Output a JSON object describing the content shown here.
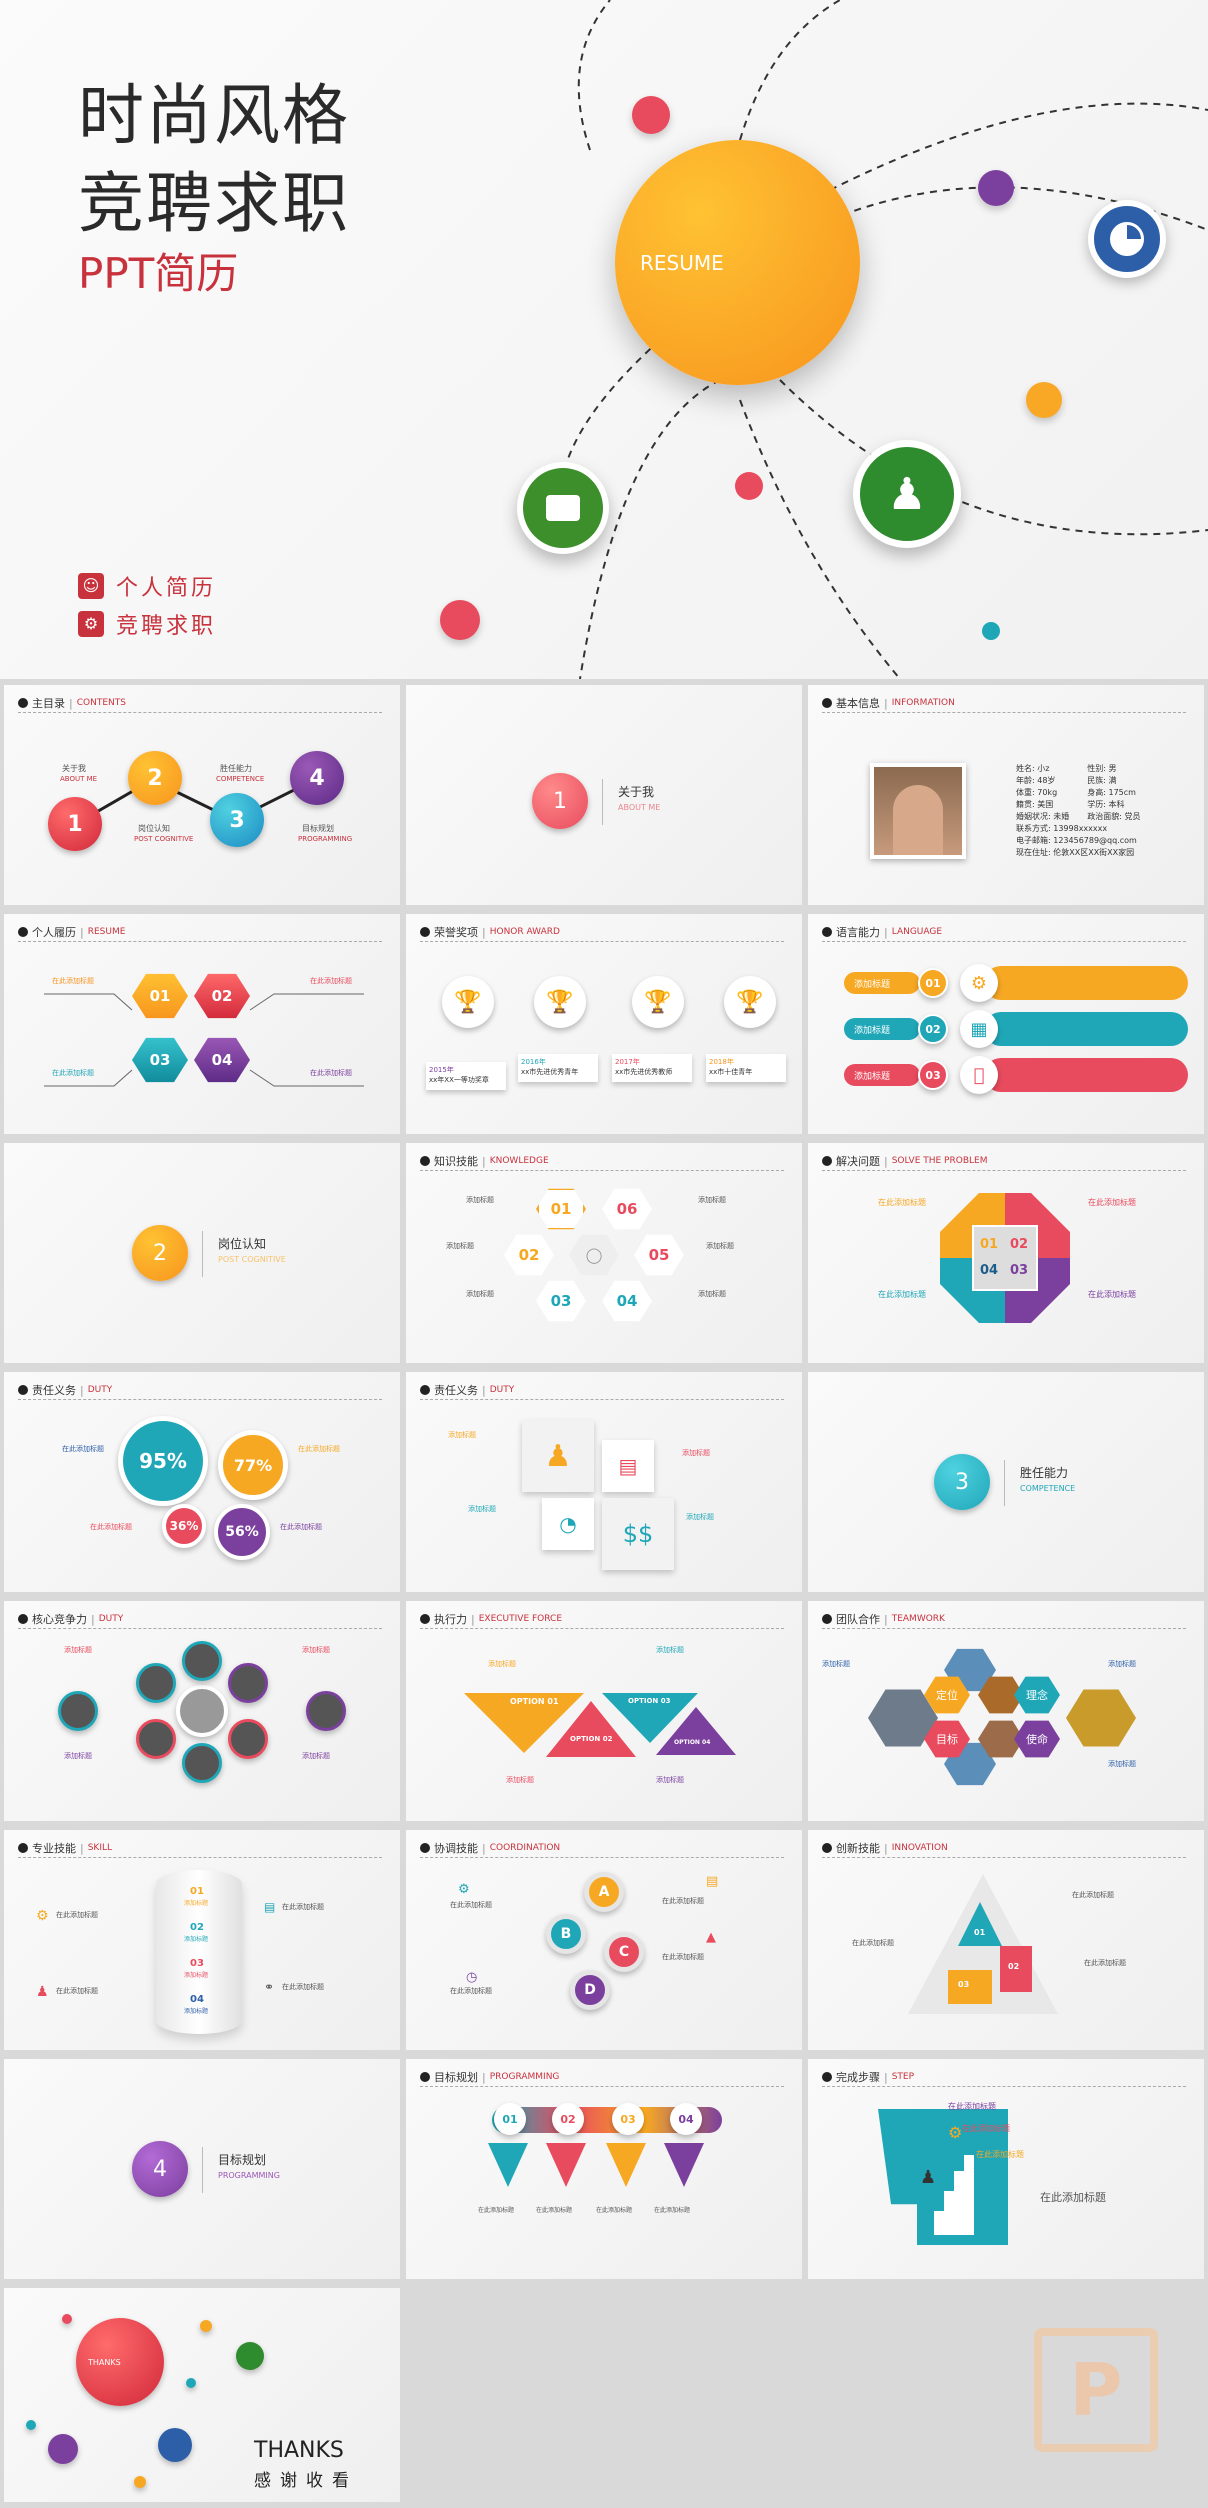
{
  "cover": {
    "title_line1": "时尚风格",
    "title_line2": "竞聘求职",
    "subtitle": "PPT简历",
    "resume_label": "RESUME",
    "menu": [
      {
        "label": "个人简历",
        "icon": "person-icon"
      },
      {
        "label": "竞聘求职",
        "icon": "gear-icon"
      }
    ],
    "colors": {
      "accent": "#c8323d",
      "orange": "#f9a825",
      "blue": "#2c5fa8",
      "green": "#2e8b2e",
      "purple": "#7b3f9e"
    }
  },
  "slides": {
    "toc": {
      "title": "主目录",
      "en": "CONTENTS",
      "items": [
        {
          "n": "1",
          "cn": "关于我",
          "en": "ABOUT ME"
        },
        {
          "n": "2",
          "cn": "岗位认知",
          "en": "POST COGNITIVE"
        },
        {
          "n": "3",
          "cn": "胜任能力",
          "en": "COMPETENCE"
        },
        {
          "n": "4",
          "cn": "目标规划",
          "en": "PROGRAMMING"
        }
      ]
    },
    "about": {
      "n": "1",
      "cn": "关于我",
      "en": "ABOUT ME"
    },
    "info": {
      "title": "基本信息",
      "en": "INFORMATION",
      "rows": [
        [
          "姓名:",
          "小z",
          "性别:",
          "男"
        ],
        [
          "年龄:",
          "48岁",
          "民族:",
          "满"
        ],
        [
          "体重:",
          "70kg",
          "身高:",
          "175cm"
        ],
        [
          "籍贯:",
          "美国",
          "学历:",
          "本科"
        ],
        [
          "婚姻状况:",
          "未婚",
          "政治面貌:",
          "党员"
        ]
      ],
      "phone_label": "联系方式:",
      "phone": "13998xxxxxx",
      "email_label": "电子邮箱:",
      "email": "123456789@qq.com",
      "addr_label": "现在住址:",
      "addr": "伦敦XX区XX街XX家园"
    },
    "resume": {
      "title": "个人履历",
      "en": "RESUME",
      "hexes": [
        "01",
        "02",
        "03",
        "04"
      ],
      "caption": "在此添加标题"
    },
    "honor": {
      "title": "荣誉奖项",
      "en": "HONOR AWARD",
      "plates": [
        {
          "year": "2015年",
          "text": "xx年XX一等功奖章"
        },
        {
          "year": "2016年",
          "text": "xx市先进优秀青年"
        },
        {
          "year": "2017年",
          "text": "xx市先进优秀教师"
        },
        {
          "year": "2018年",
          "text": "xx市十佳青年"
        }
      ]
    },
    "language": {
      "title": "语言能力",
      "en": "LANGUAGE",
      "pill": "添加标题",
      "nums": [
        "01",
        "02",
        "03"
      ]
    },
    "post": {
      "n": "2",
      "cn": "岗位认知",
      "en": "POST COGNITIVE"
    },
    "knowledge": {
      "title": "知识技能",
      "en": "KNOWLEDGE",
      "hexes": [
        "01",
        "06",
        "02",
        "05",
        "03",
        "04"
      ],
      "label": "添加标题"
    },
    "solve": {
      "title": "解决问题",
      "en": "SOLVE THE PROBLEM",
      "nums": [
        "01",
        "02",
        "04",
        "03"
      ],
      "label": "在此添加标题"
    },
    "duty1": {
      "title": "责任义务",
      "en": "DUTY",
      "values": [
        "95%",
        "77%",
        "36%",
        "56%"
      ],
      "label": "在此添加标题"
    },
    "duty2": {
      "title": "责任义务",
      "en": "DUTY",
      "label": "添加标题"
    },
    "competence": {
      "n": "3",
      "cn": "胜任能力",
      "en": "COMPETENCE"
    },
    "core": {
      "title": "核心竞争力",
      "en": "DUTY",
      "label": "添加标题"
    },
    "exec": {
      "title": "执行力",
      "en": "EXECUTIVE FORCE",
      "options": [
        "OPTION 01",
        "OPTION 02",
        "OPTION 03",
        "OPTION 04"
      ],
      "label": "添加标题"
    },
    "team": {
      "title": "团队合作",
      "en": "TEAMWORK",
      "hexes": [
        "定位",
        "理念",
        "目标",
        "使命"
      ],
      "label": "添加标题"
    },
    "skill": {
      "title": "专业技能",
      "en": "SKILL",
      "nums": [
        "01",
        "02",
        "03",
        "04"
      ],
      "sub": "添加标题",
      "label": "在此添加标题"
    },
    "coord": {
      "title": "协调技能",
      "en": "COORDINATION",
      "letters": [
        "A",
        "B",
        "C",
        "D"
      ],
      "label": "在此添加标题"
    },
    "innov": {
      "title": "创新技能",
      "en": "INNOVATION",
      "nums": [
        "01",
        "02",
        "03"
      ],
      "label": "在此添加标题"
    },
    "goal": {
      "n": "4",
      "cn": "目标规划",
      "en": "PROGRAMMING"
    },
    "plan": {
      "title": "目标规划",
      "en": "PROGRAMMING",
      "nums": [
        "01",
        "02",
        "03",
        "04"
      ],
      "sub": "添加标题",
      "label": "在此添加标题"
    },
    "step": {
      "title": "完成步骤",
      "en": "STEP",
      "label": "在此添加标题"
    },
    "thanks": {
      "en": "THANKS",
      "cn": "感谢收看",
      "ball": "THANKS"
    }
  }
}
